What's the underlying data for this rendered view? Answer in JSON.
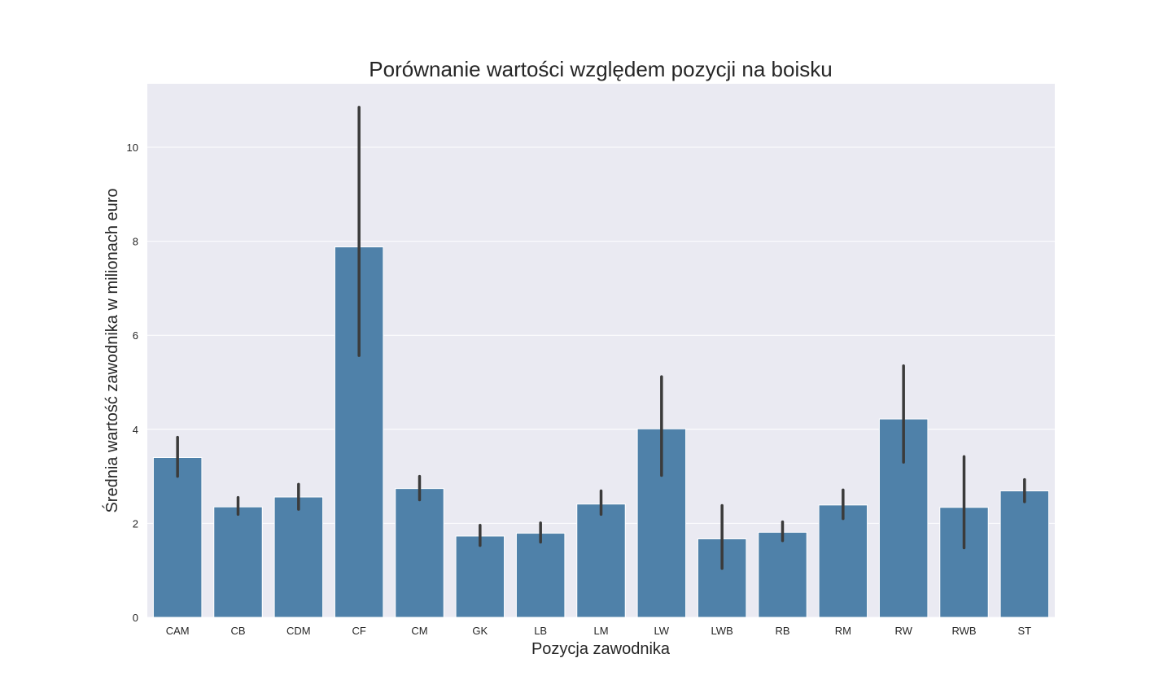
{
  "chart_data": {
    "type": "bar",
    "title": "Porównanie wartości względem pozycji na boisku",
    "xlabel": "Pozycja zawodnika",
    "ylabel": "Średnia wartość zawodnika w milionach euro",
    "ylim": [
      0,
      11.35
    ],
    "yticks": [
      0,
      2,
      4,
      6,
      8,
      10
    ],
    "grid": true,
    "bar_color": "#4f81a9",
    "error_color": "#3b3b3b",
    "plot_background": "#eaeaf2",
    "categories": [
      "CAM",
      "CB",
      "CDM",
      "CF",
      "CM",
      "GK",
      "LB",
      "LM",
      "LW",
      "LWB",
      "RB",
      "RM",
      "RW",
      "RWB",
      "ST"
    ],
    "values": [
      3.4,
      2.35,
      2.56,
      7.88,
      2.74,
      1.73,
      1.79,
      2.41,
      4.01,
      1.67,
      1.81,
      2.39,
      4.22,
      2.34,
      2.69
    ],
    "error_low": [
      3.0,
      2.19,
      2.3,
      5.57,
      2.5,
      1.53,
      1.6,
      2.19,
      3.02,
      1.04,
      1.63,
      2.1,
      3.3,
      1.48,
      2.46
    ],
    "error_high": [
      3.83,
      2.55,
      2.83,
      10.85,
      3.0,
      1.96,
      2.01,
      2.69,
      5.12,
      2.38,
      2.03,
      2.71,
      5.35,
      3.42,
      2.93
    ]
  }
}
